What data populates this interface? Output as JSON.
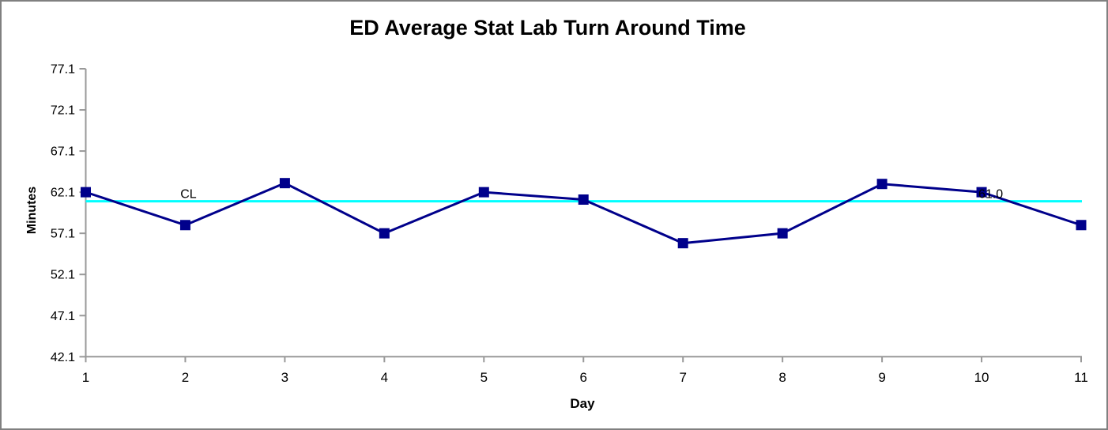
{
  "frame": {
    "border_color": "#808080",
    "background": "#FFFFFF"
  },
  "chart_data": {
    "type": "line",
    "title": "ED Average Stat Lab Turn Around Time",
    "xlabel": "Day",
    "ylabel": "Minutes",
    "x": [
      1,
      2,
      3,
      4,
      5,
      6,
      7,
      8,
      9,
      10,
      11
    ],
    "series": [
      {
        "name": "average-stat-lab-turnaround",
        "color": "#00008B",
        "marker": "square",
        "values": [
          62.1,
          58.1,
          63.2,
          57.1,
          62.1,
          61.2,
          55.9,
          57.1,
          63.1,
          62.1,
          58.1
        ]
      }
    ],
    "center_line": {
      "label": "CL",
      "value": 61.0,
      "value_label": "61.0",
      "color": "#00FFFF"
    },
    "annotations": [
      {
        "text": "CL",
        "day": 2,
        "align": "middle"
      },
      {
        "text": "61.0",
        "day": 10,
        "align": "start"
      }
    ],
    "y_ticks": [
      "77.1",
      "72.1",
      "67.1",
      "62.1",
      "57.1",
      "52.1",
      "47.1",
      "42.1"
    ],
    "x_ticks": [
      "1",
      "2",
      "3",
      "4",
      "5",
      "6",
      "7",
      "8",
      "9",
      "10",
      "11"
    ],
    "ylim": [
      42.1,
      77.1
    ],
    "axis_color": "#999999",
    "text_color": "#000000",
    "grid": "off",
    "legend": "none"
  }
}
